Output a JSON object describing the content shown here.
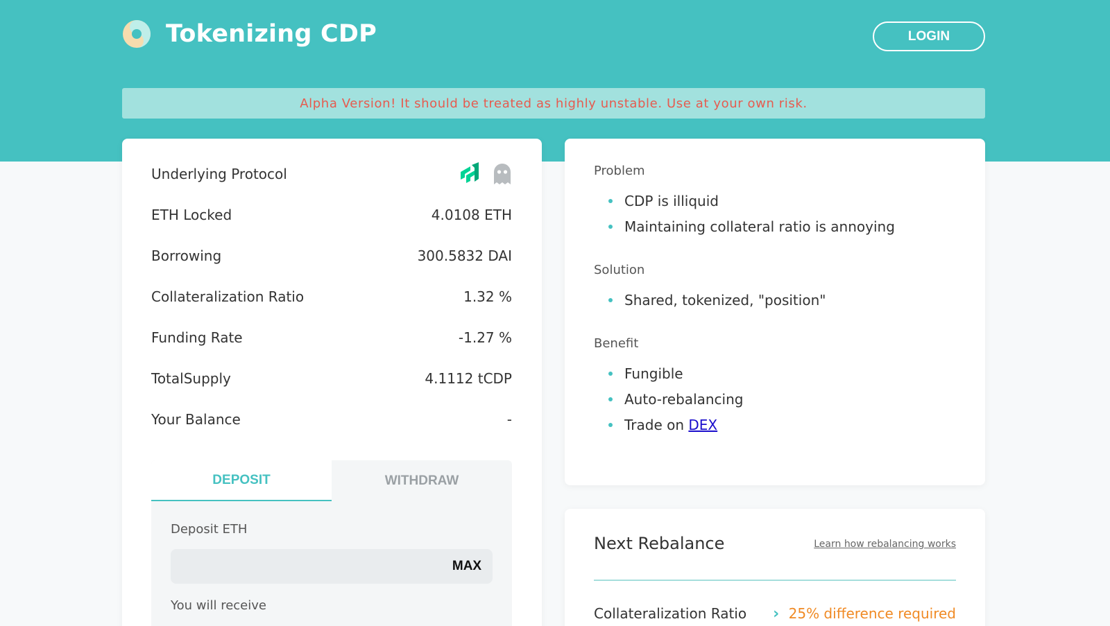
{
  "app": {
    "title": "Tokenizing CDP",
    "login_label": "LOGIN"
  },
  "alert": {
    "text": "Alpha Version! It should be treated as highly unstable. Use at your own risk."
  },
  "stats": [
    {
      "label": "Underlying Protocol",
      "value": ""
    },
    {
      "label": "ETH Locked",
      "value": "4.0108 ETH"
    },
    {
      "label": "Borrowing",
      "value": "300.5832 DAI"
    },
    {
      "label": "Collateralization Ratio",
      "value": "1.32 %"
    },
    {
      "label": "Funding Rate",
      "value": "-1.27 %"
    },
    {
      "label": "TotalSupply",
      "value": "4.1112 tCDP"
    },
    {
      "label": "Your Balance",
      "value": "-"
    }
  ],
  "protocol_icons": [
    "compound-icon",
    "ghost-icon"
  ],
  "tabs": [
    {
      "label": "DEPOSIT",
      "active": true
    },
    {
      "label": "WITHDRAW",
      "active": false
    }
  ],
  "deposit": {
    "field_label": "Deposit ETH",
    "input_value": "",
    "max_label": "MAX",
    "receive_label": "You will receive"
  },
  "info": {
    "problem_label": "Problem",
    "problem_items": [
      "CDP is illiquid",
      "Maintaining collateral ratio is annoying"
    ],
    "solution_label": "Solution",
    "solution_items": [
      "Shared, tokenized, \"position\""
    ],
    "benefit_label": "Benefit",
    "benefit_items": [
      "Fungible",
      "Auto-rebalancing"
    ],
    "trade_prefix": "Trade on ",
    "trade_link": "DEX"
  },
  "rebalance": {
    "title": "Next Rebalance",
    "learn_link": "Learn how rebalancing works",
    "row_label": "Collateralization Ratio",
    "row_value": "25% difference required"
  },
  "colors": {
    "primary": "#45c1c1",
    "alert_bg": "#a2e1de",
    "alert_text": "#e65b4f",
    "warning": "#f08a24",
    "compound_green": "#00d395",
    "link": "#1a0dcc"
  }
}
